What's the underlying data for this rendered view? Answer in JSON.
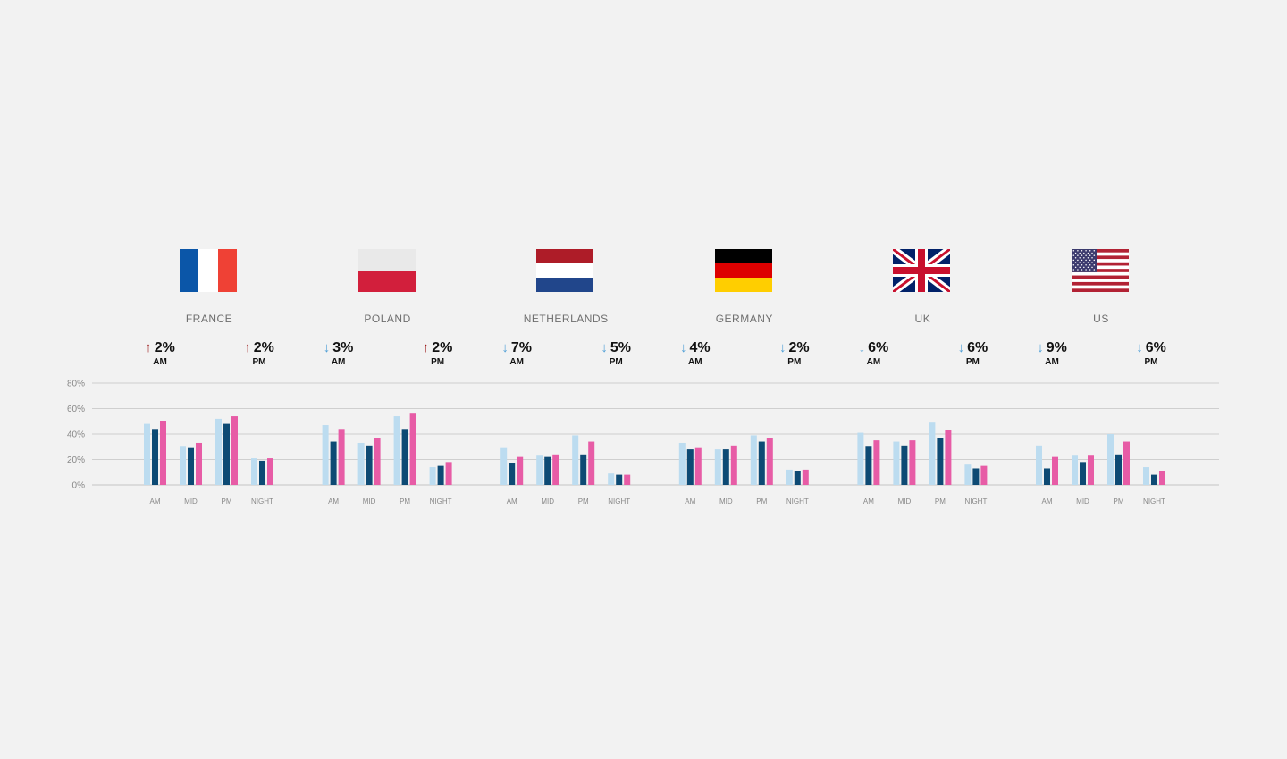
{
  "colors": {
    "series_light": "#bcdcf0",
    "series_dark": "#0d4a74",
    "series_pink": "#e75ca6",
    "arrow_up": "#9b1b1b",
    "arrow_down": "#4f9fd6",
    "grid": "#cfcfcf",
    "axis_text": "#888888"
  },
  "countries": [
    {
      "name": "FRANCE",
      "flag": "france-flag-icon",
      "am": {
        "direction": "up",
        "value": "2%",
        "label": "AM"
      },
      "pm": {
        "direction": "up",
        "value": "2%",
        "label": "PM"
      }
    },
    {
      "name": "POLAND",
      "flag": "poland-flag-icon",
      "am": {
        "direction": "down",
        "value": "3%",
        "label": "AM"
      },
      "pm": {
        "direction": "up",
        "value": "2%",
        "label": "PM"
      }
    },
    {
      "name": "NETHERLANDS",
      "flag": "netherlands-flag-icon",
      "am": {
        "direction": "down",
        "value": "7%",
        "label": "AM"
      },
      "pm": {
        "direction": "down",
        "value": "5%",
        "label": "PM"
      }
    },
    {
      "name": "GERMANY",
      "flag": "germany-flag-icon",
      "am": {
        "direction": "down",
        "value": "4%",
        "label": "AM"
      },
      "pm": {
        "direction": "down",
        "value": "2%",
        "label": "PM"
      }
    },
    {
      "name": "UK",
      "flag": "uk-flag-icon",
      "am": {
        "direction": "down",
        "value": "6%",
        "label": "AM"
      },
      "pm": {
        "direction": "down",
        "value": "6%",
        "label": "PM"
      }
    },
    {
      "name": "US",
      "flag": "us-flag-icon",
      "am": {
        "direction": "down",
        "value": "9%",
        "label": "AM"
      },
      "pm": {
        "direction": "down",
        "value": "6%",
        "label": "PM"
      }
    }
  ],
  "chart_data": {
    "type": "bar",
    "grid": true,
    "ylim": [
      0,
      80
    ],
    "yticks": [
      0,
      20,
      40,
      60,
      80
    ],
    "ytick_labels": [
      "0%",
      "20%",
      "40%",
      "60%",
      "80%"
    ],
    "categories": [
      "AM",
      "MID",
      "PM",
      "NIGHT"
    ],
    "groups": [
      {
        "country": "FRANCE",
        "series": [
          [
            48,
            30,
            52,
            21
          ],
          [
            44,
            29,
            48,
            19
          ],
          [
            50,
            33,
            54,
            21
          ]
        ]
      },
      {
        "country": "POLAND",
        "series": [
          [
            47,
            33,
            54,
            14
          ],
          [
            34,
            31,
            44,
            15
          ],
          [
            44,
            37,
            56,
            18
          ]
        ]
      },
      {
        "country": "NETHERLANDS",
        "series": [
          [
            29,
            23,
            39,
            9
          ],
          [
            17,
            22,
            24,
            8
          ],
          [
            22,
            24,
            34,
            8
          ]
        ]
      },
      {
        "country": "GERMANY",
        "series": [
          [
            33,
            28,
            39,
            12
          ],
          [
            28,
            28,
            34,
            11
          ],
          [
            29,
            31,
            37,
            12
          ]
        ]
      },
      {
        "country": "UK",
        "series": [
          [
            41,
            34,
            49,
            16
          ],
          [
            30,
            31,
            37,
            13
          ],
          [
            35,
            35,
            43,
            15
          ]
        ]
      },
      {
        "country": "US",
        "series": [
          [
            31,
            23,
            40,
            14
          ],
          [
            13,
            18,
            24,
            8
          ],
          [
            22,
            23,
            34,
            11
          ]
        ]
      }
    ]
  }
}
